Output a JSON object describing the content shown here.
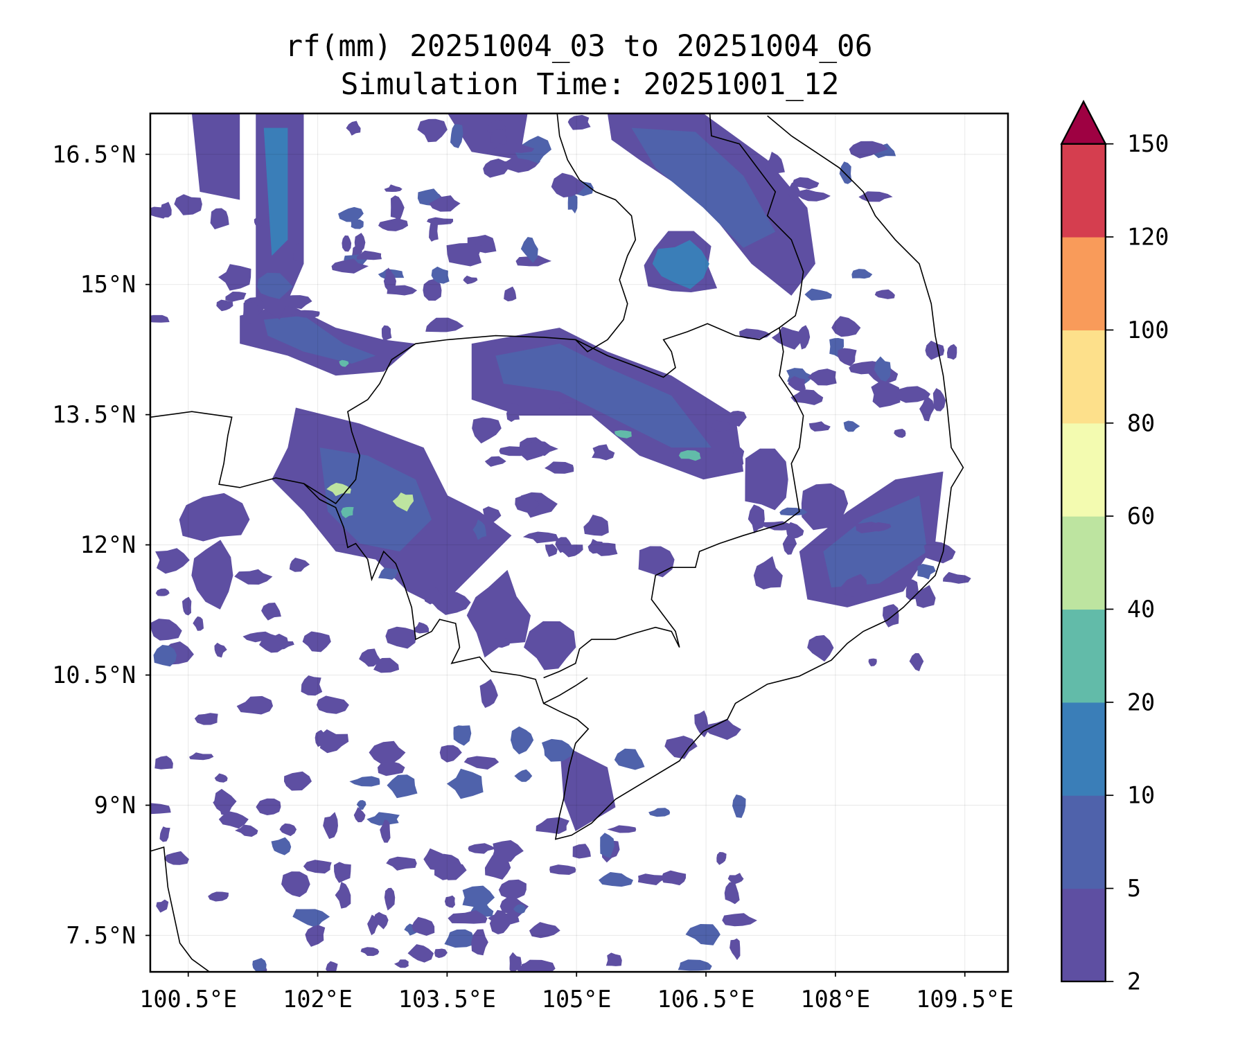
{
  "chart_data": {
    "type": "heatmap",
    "title": "rf(mm) 20251004_03 to 20251004_06",
    "subtitle": "Simulation Time: 20251001_12",
    "variable": "rf(mm)",
    "xlabel": "",
    "ylabel": "",
    "xlim": [
      100.06,
      110.0
    ],
    "ylim": [
      7.08,
      16.97
    ],
    "grid": true,
    "x_ticks": [
      100.5,
      102,
      103.5,
      105,
      106.5,
      108,
      109.5
    ],
    "x_tick_labels": [
      "100.5°E",
      "102°E",
      "103.5°E",
      "105°E",
      "106.5°E",
      "108°E",
      "109.5°E"
    ],
    "y_ticks": [
      7.5,
      9,
      10.5,
      12,
      13.5,
      15,
      16.5
    ],
    "y_tick_labels": [
      "7.5°N",
      "9°N",
      "10.5°N",
      "12°N",
      "13.5°N",
      "15°N",
      "16.5°N"
    ],
    "colorbar": {
      "levels": [
        2,
        5,
        10,
        20,
        40,
        60,
        80,
        100,
        120,
        150
      ],
      "tick_labels": [
        "2",
        "5",
        "10",
        "20",
        "40",
        "60",
        "80",
        "100",
        "120",
        "150"
      ],
      "colors": [
        "#5e4fa2",
        "#4f62ab",
        "#3a7eb8",
        "#62bba9",
        "#bde4a0",
        "#f3fbb0",
        "#fde08b",
        "#f99b5a",
        "#d53e4f"
      ],
      "extend_color": "#9e0142",
      "extend": "max",
      "placement": "right"
    },
    "max_observed_level_mm": "40-60"
  }
}
